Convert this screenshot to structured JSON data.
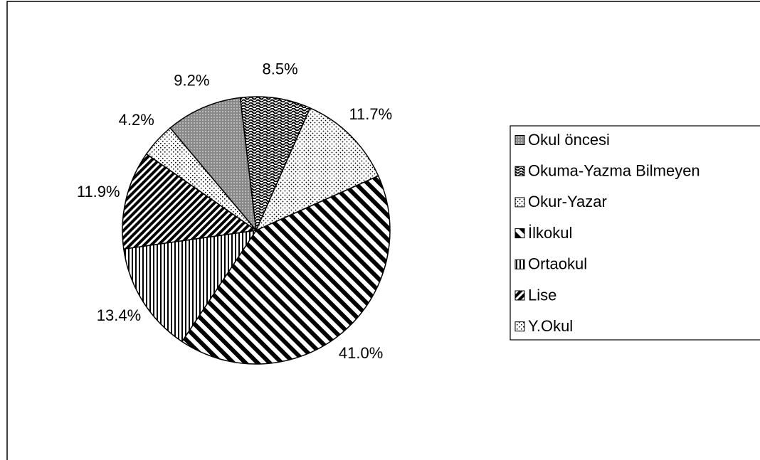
{
  "chart_data": {
    "type": "pie",
    "categories": [
      "Okul öncesi",
      "Okuma-Yazma Bilmeyen",
      "Okur-Yazar",
      "İlkokul",
      "Ortaokul",
      "Lise",
      "Y.Okul"
    ],
    "values": [
      9.2,
      8.5,
      11.7,
      41.0,
      13.4,
      11.9,
      4.2
    ],
    "value_labels": [
      "9.2%",
      "8.5%",
      "11.7%",
      "41.0%",
      "13.4%",
      "11.9%",
      "4.2%"
    ],
    "legend": "right"
  }
}
